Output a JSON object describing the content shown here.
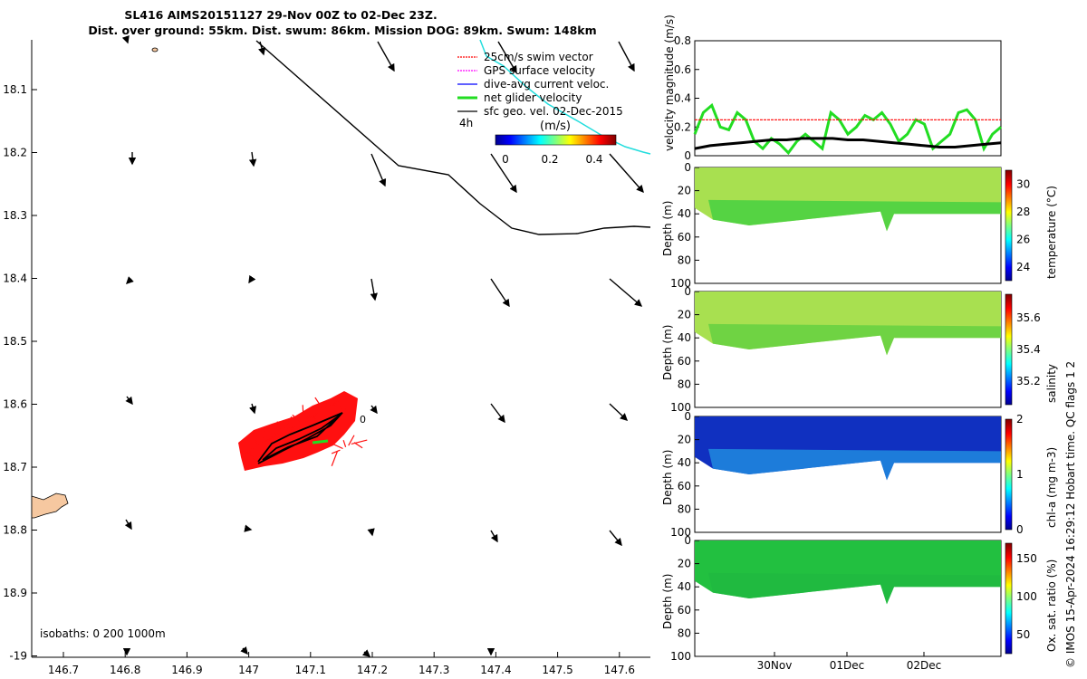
{
  "title": {
    "line1": "SL416 AIMS20151127 29-Nov 00Z to 02-Dec 23Z.",
    "line2": "Dist. over ground: 55km. Dist. swum: 86km. Mission DOG: 89km. Swum: 148km"
  },
  "credit": "© IMOS 15-Apr-2024 16:29:12 Hobart time. QC flags 1  2",
  "map": {
    "lon_ticks": [
      "146.7",
      "146.8",
      "146.9",
      "147",
      "147.1",
      "147.2",
      "147.3",
      "147.4",
      "147.5",
      "147.6"
    ],
    "lat_ticks": [
      "18.1",
      "18.2",
      "18.3",
      "18.4",
      "18.5",
      "18.6",
      "18.7",
      "18.8",
      "18.9",
      "-19"
    ],
    "isobaths_label": "isobaths: 0   200  1000m",
    "legend": [
      {
        "label": "25cm/s swim vector",
        "color": "#ff0000"
      },
      {
        "label": "GPS surface velocity",
        "color": "#ff00ff"
      },
      {
        "label": "dive-avg current veloc.",
        "color": "#0000ff"
      },
      {
        "label": "net glider velocity",
        "color": "#22dd22"
      },
      {
        "label": "sfc geo. vel. 02-Dec-2015",
        "color": "#000000"
      }
    ],
    "time_marker": "4h",
    "colorbar_unit": "(m/s)",
    "colorbar_ticks": [
      "0",
      "0.2",
      "0.4"
    ],
    "track_label": "0"
  },
  "chart_data": [
    {
      "type": "line",
      "title": "",
      "xlabel": "",
      "ylabel": "velocity magnitude (m/s)",
      "ylim": [
        0,
        0.8
      ],
      "yticks": [
        "0",
        "0.2",
        "0.4",
        "0.6",
        "0.8"
      ],
      "series": [
        {
          "name": "net glider velocity",
          "color": "#22dd22",
          "values": [
            0.15,
            0.3,
            0.35,
            0.2,
            0.18,
            0.3,
            0.25,
            0.1,
            0.05,
            0.12,
            0.08,
            0.02,
            0.1,
            0.15,
            0.1,
            0.05,
            0.3,
            0.25,
            0.15,
            0.2,
            0.28,
            0.25,
            0.3,
            0.22,
            0.1,
            0.15,
            0.25,
            0.22,
            0.05,
            0.1,
            0.15,
            0.3,
            0.32,
            0.25,
            0.05,
            0.15,
            0.2
          ]
        },
        {
          "name": "swim speed",
          "color": "#ff0000",
          "values": [
            0.25,
            0.25
          ]
        },
        {
          "name": "current",
          "color": "#000000",
          "values": [
            0.05,
            0.07,
            0.08,
            0.09,
            0.1,
            0.11,
            0.11,
            0.12,
            0.12,
            0.12,
            0.11,
            0.11,
            0.1,
            0.09,
            0.08,
            0.07,
            0.06,
            0.06,
            0.07,
            0.08,
            0.09
          ]
        }
      ]
    },
    {
      "type": "heatmap",
      "ylabel": "Depth (m)",
      "yticks": [
        "0",
        "20",
        "40",
        "60",
        "80",
        "100"
      ],
      "colorbar_label": "temperature (°C)",
      "colorbar_ticks": [
        "24",
        "26",
        "28",
        "30"
      ],
      "clim": [
        23,
        31
      ]
    },
    {
      "type": "heatmap",
      "ylabel": "Depth (m)",
      "yticks": [
        "0",
        "20",
        "40",
        "60",
        "80",
        "100"
      ],
      "colorbar_label": "salinity",
      "colorbar_ticks": [
        "35.2",
        "35.4",
        "35.6"
      ],
      "clim": [
        35.05,
        35.75
      ]
    },
    {
      "type": "heatmap",
      "ylabel": "Depth (m)",
      "yticks": [
        "0",
        "20",
        "40",
        "60",
        "80",
        "100"
      ],
      "colorbar_label": "chl-a (mg m-3)",
      "colorbar_ticks": [
        "0",
        "1",
        "2"
      ],
      "clim": [
        0,
        2
      ]
    },
    {
      "type": "heatmap",
      "ylabel": "Depth (m)",
      "yticks": [
        "0",
        "20",
        "40",
        "60",
        "80",
        "100"
      ],
      "colorbar_label": "Ox. sat. ratio (%)",
      "colorbar_ticks": [
        "50",
        "100",
        "150"
      ],
      "clim": [
        25,
        170
      ],
      "xticks": [
        "30Nov",
        "01Dec",
        "02Dec"
      ]
    }
  ]
}
